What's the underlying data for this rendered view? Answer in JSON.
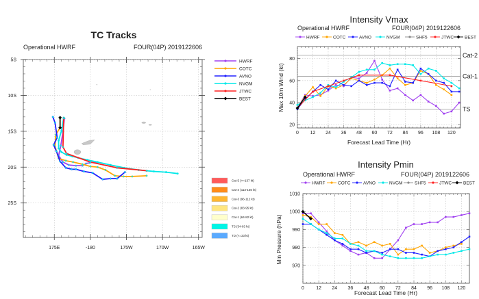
{
  "chart_data": [
    {
      "type": "line",
      "title": "TC Tracks",
      "subtitle_left": "Operational HWRF",
      "subtitle_right": "FOUR(04P) 2019122606",
      "x_tick_labels": [
        "175E",
        "-180",
        "175W",
        "170W",
        "165W"
      ],
      "x_ticks": [
        175,
        180,
        185,
        190,
        195
      ],
      "y_tick_labels": [
        "5S",
        "10S",
        "15S",
        "20S",
        "25S"
      ],
      "y_ticks": [
        -5,
        -10,
        -15,
        -20,
        -25
      ],
      "xlim": [
        170.7,
        195.5
      ],
      "ylim": [
        -29.8,
        -5
      ],
      "grid": true,
      "legend_position": "right",
      "series": [
        {
          "name": "HWRF",
          "color": "#a040f0",
          "points": [
            [
              176.4,
              -13.2
            ],
            [
              176.2,
              -15.1
            ],
            [
              175.9,
              -17.0
            ],
            [
              175.6,
              -18.4
            ],
            [
              176.2,
              -19.3
            ],
            [
              177.0,
              -19.7
            ],
            [
              178.0,
              -19.8
            ],
            [
              178.9,
              -19.8
            ],
            [
              179.4,
              -19.5
            ],
            [
              179.9,
              -19.4
            ],
            [
              180.5,
              -19.3
            ],
            [
              181.0,
              -19.4
            ]
          ]
        },
        {
          "name": "COTC",
          "color": "#ffa500",
          "points": [
            [
              175.8,
              -13.2
            ],
            [
              175.8,
              -14.5
            ],
            [
              175.2,
              -15.5
            ],
            [
              175.1,
              -17.1
            ],
            [
              175.6,
              -18.8
            ],
            [
              176.6,
              -19.1
            ],
            [
              177.6,
              -19.3
            ],
            [
              178.9,
              -19.6
            ],
            [
              180.0,
              -19.9
            ],
            [
              181.0,
              -20.0
            ],
            [
              182.1,
              -20.4
            ],
            [
              183.4,
              -21.2
            ],
            [
              184.6,
              -21.3
            ],
            [
              185.8,
              -21.3
            ],
            [
              187.8,
              -21.2
            ]
          ]
        },
        {
          "name": "AVNO",
          "color": "#2020ff",
          "points": [
            [
              174.8,
              -13.0
            ],
            [
              175.1,
              -13.8
            ],
            [
              175.4,
              -15.9
            ],
            [
              174.9,
              -16.9
            ],
            [
              175.3,
              -17.8
            ],
            [
              175.8,
              -19.2
            ],
            [
              176.6,
              -20.1
            ],
            [
              177.4,
              -20.3
            ],
            [
              178.0,
              -20.3
            ],
            [
              179.1,
              -20.6
            ],
            [
              180.3,
              -20.8
            ],
            [
              181.7,
              -21.7
            ],
            [
              182.8,
              -21.6
            ],
            [
              183.7,
              -21.6
            ],
            [
              184.8,
              -20.7
            ]
          ]
        },
        {
          "name": "NVGM",
          "color": "#00e8e8",
          "points": [
            [
              176.3,
              -13.1
            ],
            [
              176.0,
              -14.9
            ],
            [
              175.6,
              -16.3
            ],
            [
              175.6,
              -17.4
            ],
            [
              176.0,
              -17.9
            ],
            [
              176.7,
              -18.3
            ],
            [
              177.5,
              -18.5
            ],
            [
              178.3,
              -18.7
            ],
            [
              179.6,
              -19.0
            ],
            [
              181.0,
              -19.3
            ],
            [
              182.8,
              -19.7
            ],
            [
              184.7,
              -20.1
            ],
            [
              186.7,
              -20.4
            ],
            [
              188.8,
              -20.6
            ],
            [
              190.5,
              -20.7
            ],
            [
              192.1,
              -20.9
            ]
          ]
        },
        {
          "name": "JTWC",
          "color": "#ff2020",
          "points": [
            [
              176.3,
              -13.2
            ],
            [
              176.2,
              -17.2
            ],
            [
              176.7,
              -18.1
            ],
            [
              180.0,
              -19.3
            ],
            [
              183.7,
              -20.1
            ],
            [
              187.8,
              -20.5
            ]
          ]
        },
        {
          "name": "BEST",
          "color": "#000000",
          "points": [
            [
              175.8,
              -13.1
            ],
            [
              175.8,
              -14.5
            ]
          ]
        }
      ],
      "category_legend": [
        {
          "label": "Cat-5 (>=137 kt)",
          "color": "#ff5a5a"
        },
        {
          "label": "Cat-4 (113-136 kt)",
          "color": "#ff8c1a"
        },
        {
          "label": "Cat-3 (96-112 kt)",
          "color": "#ffb732"
        },
        {
          "label": "Cat-2 (83-95 kt)",
          "color": "#ffe680"
        },
        {
          "label": "Cat-1 (64-82 kt)",
          "color": "#ffffcc"
        },
        {
          "label": "TS (34-63 kt)",
          "color": "#00f5e6"
        },
        {
          "label": "TD (<=33 kt)",
          "color": "#5aaaff"
        }
      ],
      "land_color": "#c8c8c8"
    },
    {
      "type": "line",
      "title": "Intensity Vmax",
      "subtitle_left": "Operational HWRF",
      "subtitle_right": "FOUR(04P) 2019122606",
      "xlabel": "Forecast Lead Time (Hr)",
      "ylabel": "Max 10m Wind (kt)",
      "xlim": [
        0,
        127
      ],
      "ylim": [
        17,
        91
      ],
      "x_ticks": [
        0,
        12,
        24,
        36,
        48,
        60,
        72,
        84,
        96,
        108,
        120
      ],
      "y_ticks": [
        20,
        40,
        60,
        80
      ],
      "thresholds": [
        {
          "label": "Cat-2",
          "value": 83
        },
        {
          "label": "Cat-1",
          "value": 64
        },
        {
          "label": "TS",
          "value": 34
        }
      ],
      "legend_position": "top",
      "legend": [
        "HWRF",
        "COTC",
        "AVNO",
        "NVGM",
        "SHF5",
        "JTWC",
        "BEST"
      ],
      "series": [
        {
          "name": "HWRF",
          "color": "#a040f0",
          "x": [
            0,
            6,
            12,
            18,
            24,
            30,
            36,
            42,
            48,
            54,
            60,
            66,
            72,
            78,
            84,
            90,
            96,
            102,
            108,
            114,
            120,
            126
          ],
          "values": [
            35,
            47,
            46,
            47,
            51,
            56,
            55,
            63,
            62,
            67,
            78,
            61,
            51,
            53,
            47,
            42,
            47,
            41,
            37,
            30,
            32,
            40
          ]
        },
        {
          "name": "COTC",
          "color": "#ffa500",
          "x": [
            0,
            6,
            12,
            18,
            24,
            30,
            36,
            42,
            48,
            54,
            60,
            66,
            72,
            78,
            84,
            90,
            96,
            102,
            108,
            114,
            120
          ],
          "values": [
            35,
            46,
            54,
            46,
            55,
            53,
            56,
            62,
            60,
            58,
            61,
            65,
            71,
            62,
            56,
            58,
            69,
            66,
            56,
            52,
            47
          ]
        },
        {
          "name": "AVNO",
          "color": "#2020ff",
          "x": [
            0,
            6,
            12,
            18,
            24,
            30,
            36,
            42,
            48,
            54,
            60,
            66,
            72,
            78,
            84,
            90,
            96,
            102,
            108,
            114,
            120,
            126
          ],
          "values": [
            34,
            43,
            50,
            56,
            52,
            60,
            56,
            55,
            60,
            56,
            58,
            58,
            55,
            70,
            59,
            58,
            71,
            66,
            60,
            58,
            50,
            50
          ]
        },
        {
          "name": "NVGM",
          "color": "#00e8e8",
          "x": [
            0,
            6,
            12,
            18,
            24,
            30,
            36,
            42,
            48,
            54,
            60,
            66,
            72,
            78,
            84,
            90,
            96,
            102,
            108,
            114,
            120,
            126
          ],
          "values": [
            38,
            42,
            45,
            49,
            56,
            54,
            59,
            63,
            68,
            70,
            70,
            76,
            74,
            75,
            75,
            74,
            66,
            71,
            69,
            62,
            58,
            53
          ]
        },
        {
          "name": "SHF5",
          "color": "#888888",
          "x": [],
          "values": []
        },
        {
          "name": "JTWC",
          "color": "#ff2020",
          "x": [
            0,
            12,
            24,
            36,
            48,
            72,
            96,
            120
          ],
          "values": [
            35,
            50,
            55,
            60,
            65,
            65,
            60,
            55
          ]
        },
        {
          "name": "BEST",
          "color": "#000000",
          "x": [
            0,
            6
          ],
          "values": [
            35,
            45
          ]
        }
      ]
    },
    {
      "type": "line",
      "title": "Intensity Pmin",
      "subtitle_left": "Operational HWRF",
      "subtitle_right": "FOUR(04P) 2019122606",
      "xlabel": "Forecast Lead Time (Hr)",
      "ylabel": "Min Pressure (hPa)",
      "xlim": [
        0,
        126
      ],
      "ylim": [
        960,
        1010
      ],
      "x_ticks": [
        0,
        12,
        24,
        36,
        48,
        60,
        72,
        84,
        96,
        108,
        120
      ],
      "y_ticks": [
        970,
        980,
        990,
        1000,
        1010
      ],
      "legend_position": "top",
      "legend": [
        "HWRF",
        "COTC",
        "AVNO",
        "NVGM",
        "SHF5",
        "JTWC",
        "BEST"
      ],
      "series": [
        {
          "name": "HWRF",
          "color": "#a040f0",
          "x": [
            0,
            6,
            12,
            18,
            24,
            30,
            36,
            42,
            48,
            54,
            60,
            66,
            72,
            78,
            84,
            90,
            96,
            102,
            108,
            114,
            120,
            126
          ],
          "values": [
            999,
            999,
            994,
            989,
            984,
            981,
            978,
            976,
            977,
            974,
            974,
            979,
            984,
            991,
            993,
            993,
            994,
            994,
            997,
            997,
            998,
            999
          ]
        },
        {
          "name": "COTC",
          "color": "#ffa500",
          "x": [
            0,
            6,
            12,
            18,
            24,
            30,
            36,
            42,
            48,
            54,
            60,
            66,
            72,
            78,
            84,
            90,
            96,
            102,
            108,
            114,
            120
          ],
          "values": [
            998,
            997,
            993,
            993,
            988,
            987,
            982,
            983,
            981,
            983,
            981,
            982,
            976,
            979,
            979,
            981,
            977,
            978,
            980,
            981,
            982
          ]
        },
        {
          "name": "AVNO",
          "color": "#2020ff",
          "x": [
            0,
            6,
            12,
            18,
            24,
            30,
            36,
            42,
            48,
            54,
            60,
            66,
            72,
            78,
            84,
            90,
            96,
            102,
            108,
            114,
            120,
            126
          ],
          "values": [
            993,
            993,
            990,
            987,
            984,
            982,
            979,
            979,
            977,
            978,
            977,
            979,
            979,
            977,
            977,
            976,
            975,
            978,
            979,
            980,
            983,
            986
          ]
        },
        {
          "name": "NVGM",
          "color": "#00e8e8",
          "x": [
            0,
            6,
            12,
            18,
            24,
            30,
            36,
            42,
            48,
            54,
            60,
            66,
            72,
            78,
            84,
            90,
            96,
            102,
            108,
            114,
            120,
            126
          ],
          "values": [
            996,
            993,
            990,
            988,
            985,
            985,
            982,
            981,
            978,
            978,
            976,
            975,
            974,
            974,
            974,
            974,
            975,
            976,
            976,
            977,
            978,
            979
          ]
        },
        {
          "name": "SHF5",
          "color": "#888888",
          "x": [],
          "values": []
        },
        {
          "name": "JTWC",
          "color": "#ff2020",
          "x": [],
          "values": []
        },
        {
          "name": "BEST",
          "color": "#000000",
          "x": [
            0,
            6
          ],
          "values": [
            1000,
            996
          ]
        }
      ]
    }
  ]
}
